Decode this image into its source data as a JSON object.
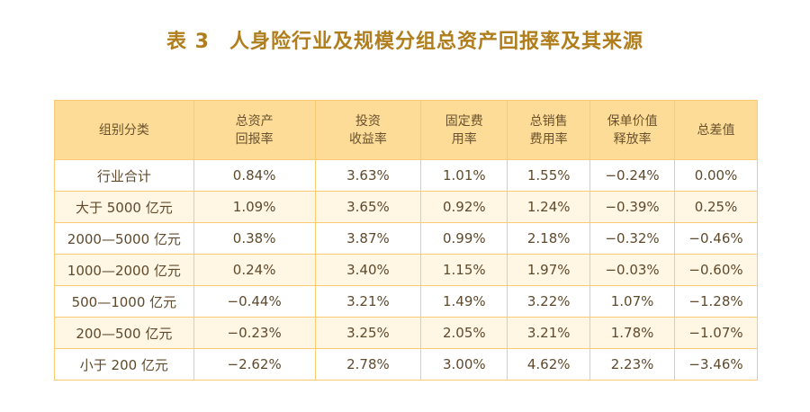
{
  "title": {
    "number": "表 3",
    "text": "人身险行业及规模分组总资产回报率及其来源"
  },
  "table": {
    "headers": [
      [
        "组别分类"
      ],
      [
        "总资产",
        "回报率"
      ],
      [
        "投资",
        "收益率"
      ],
      [
        "固定费",
        "用率"
      ],
      [
        "总销售",
        "费用率"
      ],
      [
        "保单价值",
        "释放率"
      ],
      [
        "总差值"
      ]
    ],
    "rows": [
      [
        "行业合计",
        "0.84%",
        "3.63%",
        "1.01%",
        "1.55%",
        "−0.24%",
        "0.00%"
      ],
      [
        "大于 5000 亿元",
        "1.09%",
        "3.65%",
        "0.92%",
        "1.24%",
        "−0.39%",
        "0.25%"
      ],
      [
        "2000—5000 亿元",
        "0.38%",
        "3.87%",
        "0.99%",
        "2.18%",
        "−0.32%",
        "−0.46%"
      ],
      [
        "1000—2000 亿元",
        "0.24%",
        "3.40%",
        "1.15%",
        "1.97%",
        "−0.03%",
        "−0.60%"
      ],
      [
        "500—1000 亿元",
        "−0.44%",
        "3.21%",
        "1.49%",
        "3.22%",
        "1.07%",
        "−1.28%"
      ],
      [
        "200—500 亿元",
        "−0.23%",
        "3.25%",
        "2.05%",
        "3.21%",
        "1.78%",
        "−1.07%"
      ],
      [
        "小于 200 亿元",
        "−2.62%",
        "2.78%",
        "3.00%",
        "4.62%",
        "2.23%",
        "−3.46%"
      ]
    ]
  },
  "colors": {
    "title": "#b07e1c",
    "header_bg": "#fcdc96",
    "border": "#fbcb74",
    "stripe": "#fff6e4",
    "text": "#5f4a2c"
  }
}
